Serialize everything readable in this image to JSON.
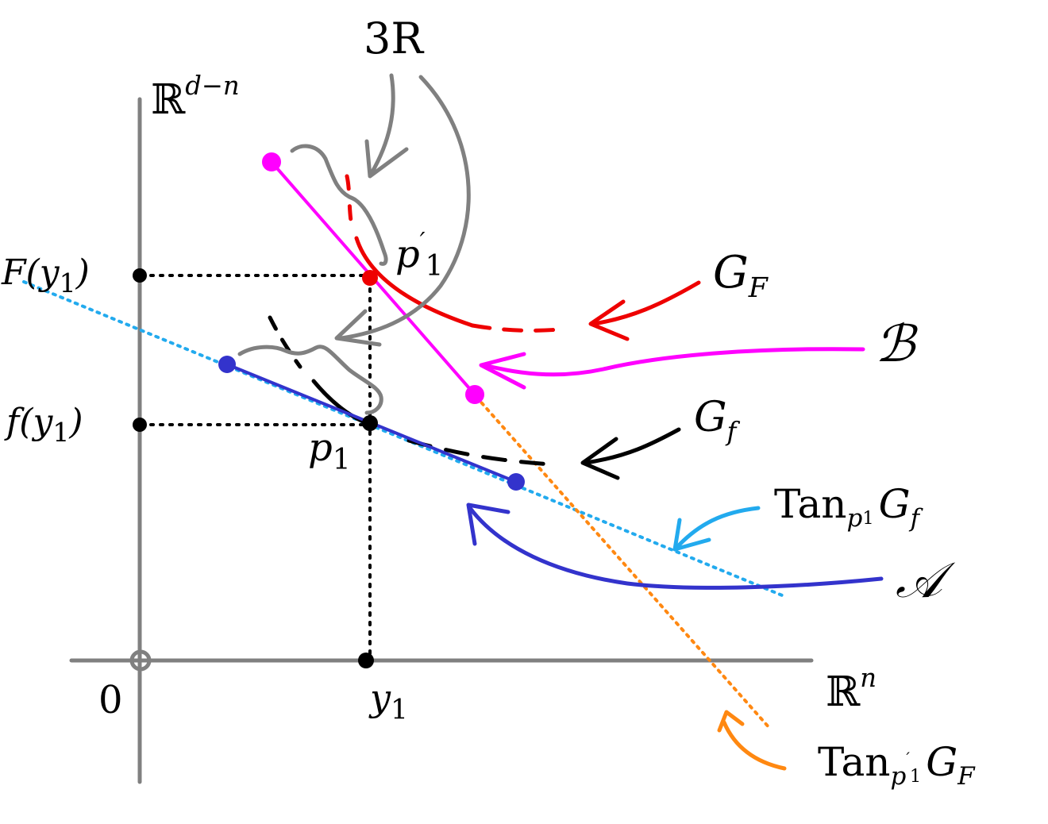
{
  "labels": {
    "three_r": "3R",
    "rdn_base": "ℝ",
    "rdn_sup": "d−n",
    "rn_base": "ℝ",
    "rn_sup": "n",
    "origin": "0",
    "y1_base": "y",
    "y1_sub": "1",
    "F_y1": "F(y",
    "F_y1_sub": "1",
    "F_y1_close": ")",
    "f_y1": "f(y",
    "f_y1_sub": "1",
    "f_y1_close": ")",
    "p1_base": "p",
    "p1_sub": "1",
    "p1p_base": "p",
    "p1p_prime": "′",
    "p1p_sub": "1",
    "GF_base": "G",
    "GF_sub": "F",
    "Gf_base": "G",
    "Gf_sub": "f",
    "B": "ℬ",
    "A": "𝒜",
    "tan_f_base": "Tan",
    "tan_f_sub_p": "p",
    "tan_f_sub_1": "1",
    "tan_f_G": "G",
    "tan_f_Gsub": "f",
    "tan_F_base": "Tan",
    "tan_F_sub_p": "p",
    "tan_F_sub_prime": "′",
    "tan_F_sub_1": "1",
    "tan_F_G": "G",
    "tan_F_Gsub": "F"
  },
  "colors": {
    "axis": "#808080",
    "black": "#000000",
    "red": "#ee0000",
    "magenta": "#ff00ff",
    "blue": "#3333cc",
    "cyan": "#22aaee",
    "orange": "#ff8811",
    "gray": "#808080"
  }
}
